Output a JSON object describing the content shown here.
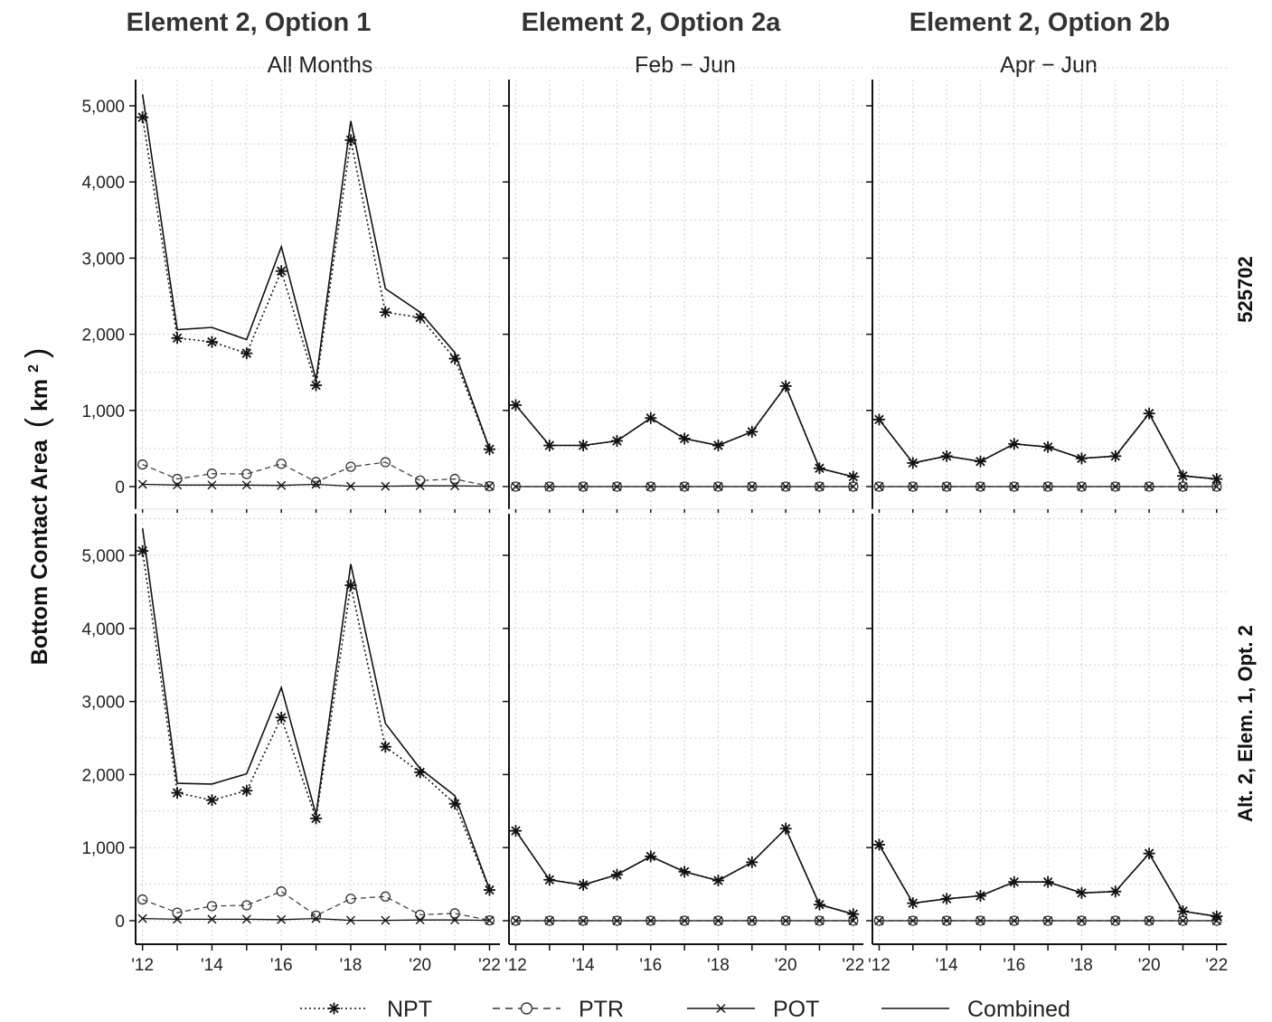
{
  "chart_data": {
    "type": "line",
    "column_titles": [
      "Element 2, Option 1",
      "Element 2, Option 2a",
      "Element 2, Option 2b"
    ],
    "column_strips": [
      "All Months",
      "Feb − Jun",
      "Apr − Jun"
    ],
    "row_labels": [
      "525702",
      "Alt. 2, Elem. 1, Opt. 2"
    ],
    "ylabel": "Bottom Contact Area",
    "ylabel_unit": "km",
    "ylabel_unit_sup": "2",
    "x": [
      2012,
      2013,
      2014,
      2015,
      2016,
      2017,
      2018,
      2019,
      2020,
      2021,
      2022
    ],
    "x_tick_values": [
      2012,
      2014,
      2016,
      2018,
      2020,
      2022
    ],
    "x_tick_labels": [
      "'12",
      "'14",
      "'16",
      "'18",
      "'20",
      "'22"
    ],
    "y_tick_values": [
      0,
      1000,
      2000,
      3000,
      4000,
      5000
    ],
    "y_tick_labels": [
      "0",
      "1,000",
      "2,000",
      "3,000",
      "4,000",
      "5,000"
    ],
    "xlim": [
      2011.8,
      2022.3
    ],
    "ylim_rows": [
      [
        -100,
        5500
      ],
      [
        -100,
        5500
      ]
    ],
    "grid": true,
    "legend_position": "bottom",
    "legend": [
      {
        "name": "NPT",
        "style": "dotted-star"
      },
      {
        "name": "PTR",
        "style": "dashed-circle"
      },
      {
        "name": "POT",
        "style": "solid-x"
      },
      {
        "name": "Combined",
        "style": "solid"
      }
    ],
    "panels": [
      {
        "row": 0,
        "col": 0,
        "NPT": [
          4850,
          1950,
          1900,
          1750,
          2830,
          1330,
          4550,
          2290,
          2220,
          1680,
          490
        ],
        "PTR": [
          290,
          100,
          170,
          165,
          300,
          60,
          260,
          320,
          80,
          100,
          5
        ],
        "POT": [
          30,
          20,
          20,
          20,
          15,
          30,
          5,
          5,
          10,
          10,
          5
        ],
        "Combined": [
          5150,
          2060,
          2090,
          1930,
          3150,
          1400,
          4800,
          2600,
          2290,
          1760,
          495
        ]
      },
      {
        "row": 0,
        "col": 1,
        "NPT": [
          1070,
          540,
          540,
          600,
          900,
          630,
          540,
          720,
          1320,
          240,
          130
        ],
        "PTR": [
          0,
          0,
          0,
          0,
          0,
          0,
          0,
          0,
          0,
          0,
          0
        ],
        "POT": [
          0,
          0,
          0,
          0,
          0,
          0,
          0,
          0,
          0,
          0,
          0
        ],
        "Combined": [
          1070,
          540,
          540,
          600,
          900,
          630,
          540,
          720,
          1320,
          240,
          130
        ]
      },
      {
        "row": 0,
        "col": 2,
        "NPT": [
          880,
          310,
          400,
          330,
          560,
          520,
          370,
          400,
          960,
          140,
          100
        ],
        "PTR": [
          0,
          0,
          0,
          0,
          0,
          0,
          0,
          0,
          0,
          0,
          0
        ],
        "POT": [
          0,
          0,
          0,
          0,
          0,
          0,
          0,
          0,
          0,
          0,
          0
        ],
        "Combined": [
          880,
          310,
          400,
          330,
          560,
          520,
          370,
          400,
          960,
          140,
          100
        ]
      },
      {
        "row": 1,
        "col": 0,
        "NPT": [
          5060,
          1750,
          1650,
          1780,
          2780,
          1400,
          4590,
          2380,
          2030,
          1600,
          420
        ],
        "PTR": [
          290,
          110,
          200,
          210,
          400,
          70,
          300,
          330,
          80,
          100,
          5
        ],
        "POT": [
          30,
          20,
          20,
          20,
          15,
          30,
          5,
          5,
          10,
          10,
          5
        ],
        "Combined": [
          5370,
          1880,
          1870,
          2010,
          3190,
          1450,
          4880,
          2700,
          2080,
          1710,
          430
        ]
      },
      {
        "row": 1,
        "col": 1,
        "NPT": [
          1230,
          560,
          490,
          630,
          880,
          670,
          550,
          800,
          1260,
          220,
          90
        ],
        "PTR": [
          0,
          0,
          0,
          0,
          0,
          0,
          0,
          0,
          0,
          0,
          0
        ],
        "POT": [
          0,
          0,
          0,
          0,
          0,
          0,
          0,
          0,
          0,
          0,
          0
        ],
        "Combined": [
          1230,
          560,
          490,
          630,
          880,
          670,
          550,
          800,
          1260,
          220,
          90
        ]
      },
      {
        "row": 1,
        "col": 2,
        "NPT": [
          1040,
          240,
          300,
          340,
          530,
          530,
          380,
          400,
          920,
          130,
          60
        ],
        "PTR": [
          0,
          0,
          0,
          0,
          0,
          0,
          0,
          0,
          0,
          0,
          0
        ],
        "POT": [
          0,
          0,
          0,
          0,
          0,
          0,
          0,
          0,
          0,
          0,
          0
        ],
        "Combined": [
          1040,
          240,
          300,
          340,
          530,
          530,
          380,
          400,
          920,
          130,
          60
        ]
      }
    ]
  }
}
